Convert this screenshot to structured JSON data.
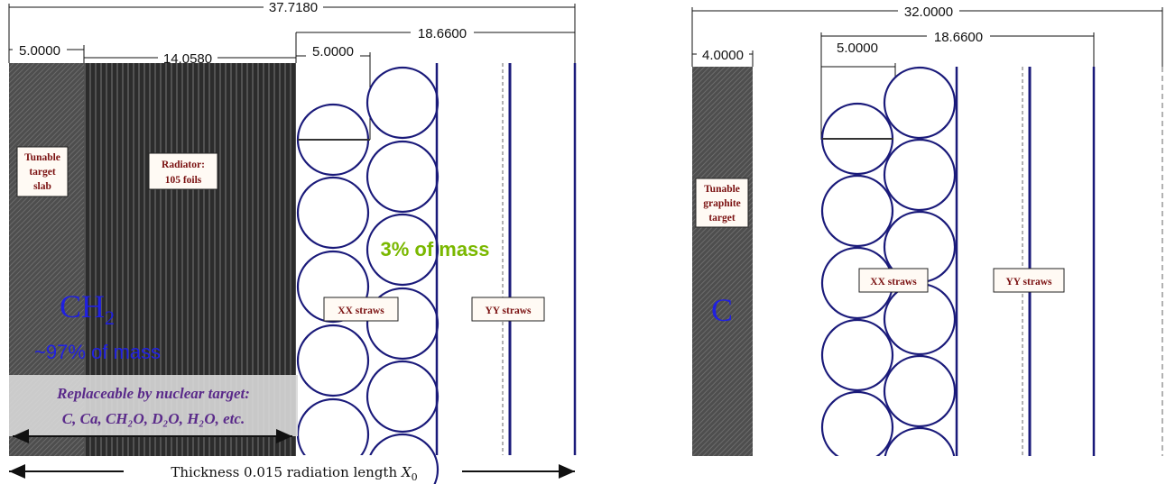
{
  "colors": {
    "ch2": "#2020e0",
    "mass_small": "#7ab800",
    "replace_text": "#5a2a8a",
    "label_text": "#7a1010",
    "straw": "#1a1a7a"
  },
  "left": {
    "dims": {
      "total": "37.7180",
      "target": "5.0000",
      "radiator": "14.0580",
      "straw_offset": "5.0000",
      "straw_span": "18.6600"
    },
    "target_label": [
      "Tunable",
      "target",
      "slab"
    ],
    "radiator_label": [
      "Radiator:",
      "105 foils"
    ],
    "xx_label": "XX straws",
    "yy_label": "YY straws",
    "mass_small": "3% of mass",
    "material": "CH",
    "material_sub": "2",
    "mass_big": "~97% of mass",
    "replace_line1": "Replaceable by nuclear target:",
    "replace_line2": "C, Ca, CH₂O, D₂O, H₂O, etc.",
    "thickness": "Thickness 0.015 radiation length",
    "thickness_sym": "X",
    "thickness_sub": "0"
  },
  "right": {
    "dims": {
      "total": "32.0000",
      "target": "4.0000",
      "straw_offset": "5.0000",
      "straw_span": "18.6600"
    },
    "target_label": [
      "Tunable",
      "graphite",
      "target"
    ],
    "xx_label": "XX straws",
    "yy_label": "YY straws",
    "material": "C"
  }
}
